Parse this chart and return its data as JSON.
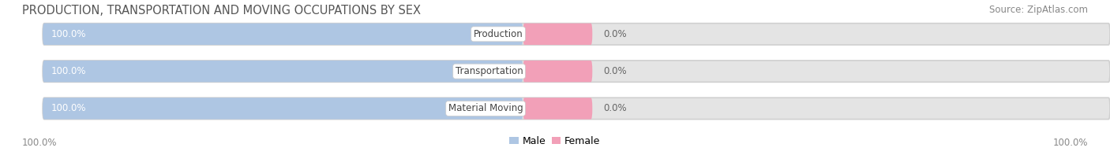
{
  "title": "PRODUCTION, TRANSPORTATION AND MOVING OCCUPATIONS BY SEX",
  "source": "Source: ZipAtlas.com",
  "categories": [
    "Production",
    "Transportation",
    "Material Moving"
  ],
  "male_values": [
    100.0,
    100.0,
    100.0
  ],
  "female_values": [
    0.0,
    0.0,
    0.0
  ],
  "male_color": "#aec6e3",
  "female_color": "#f2a0b8",
  "bar_bg_color": "#e4e4e4",
  "background_color": "#ffffff",
  "title_fontsize": 10.5,
  "source_fontsize": 8.5,
  "bar_label_fontsize": 8.5,
  "category_fontsize": 8.5,
  "axis_fontsize": 8.5,
  "legend_fontsize": 9,
  "male_label_color": "#ffffff",
  "value_label_color": "#666666",
  "title_color": "#555555",
  "source_color": "#888888",
  "axis_label_color": "#888888"
}
